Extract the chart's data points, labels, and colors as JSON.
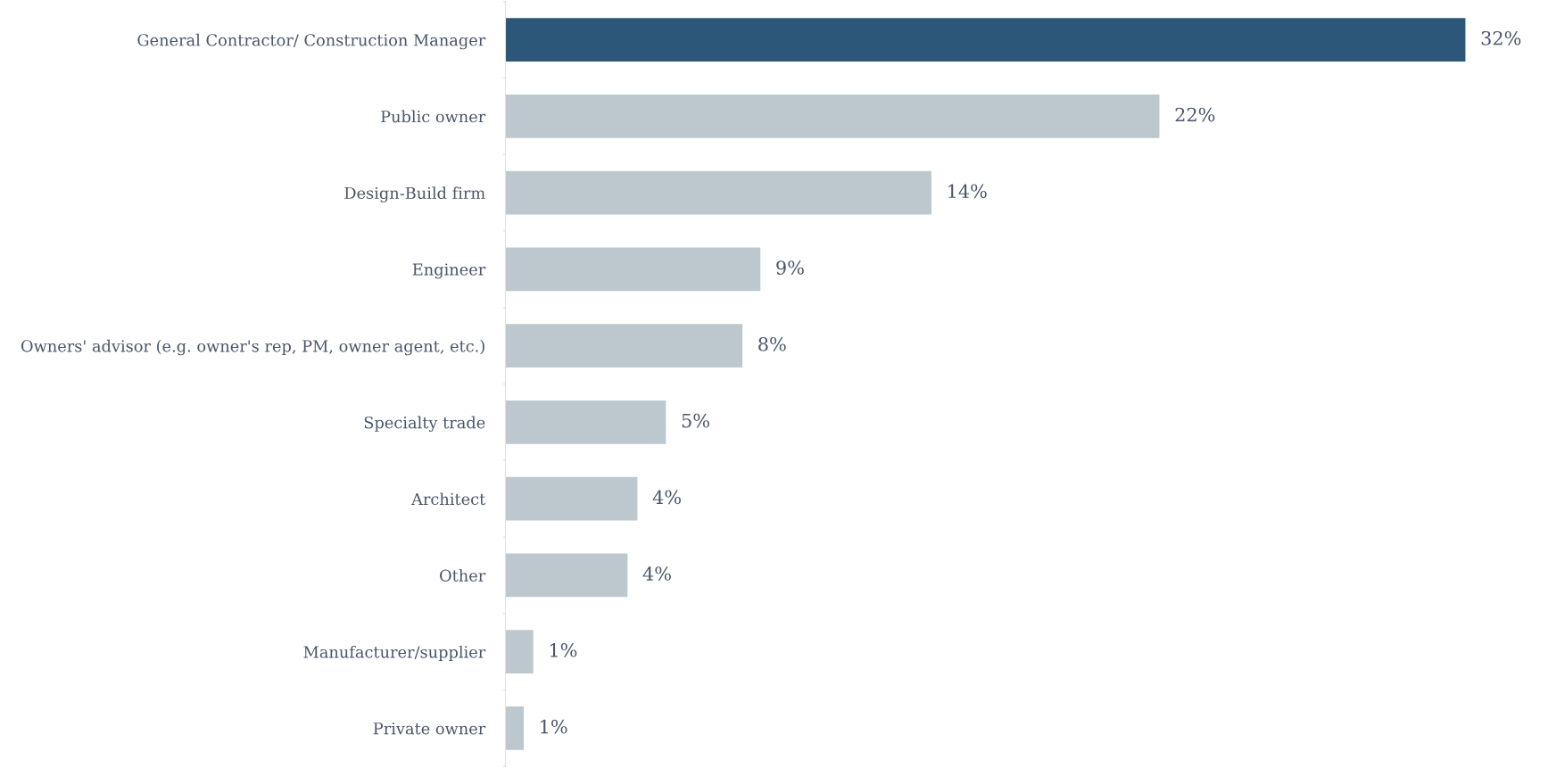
{
  "chart_data": {
    "type": "bar",
    "orientation": "horizontal",
    "categories": [
      "General Contractor/ Construction Manager",
      "Public owner",
      "Design-Build firm",
      "Engineer",
      "Owners' advisor (e.g. owner's rep, PM, owner agent, etc.)",
      "Specialty trade",
      "Architect",
      "Other",
      "Manufacturer/supplier",
      "Private owner"
    ],
    "values": [
      32,
      21.8,
      14.2,
      8.5,
      7.9,
      5.35,
      4.4,
      4.07,
      0.93,
      0.61
    ],
    "value_labels": [
      "32%",
      "22%",
      "14%",
      "9%",
      "8%",
      "5%",
      "4%",
      "4%",
      "1%",
      "1%"
    ],
    "colors": [
      "#2c5779",
      "#bdc8ce",
      "#bdc8ce",
      "#bdc8ce",
      "#bdc8ce",
      "#bdc8ce",
      "#bdc8ce",
      "#bdc8ce",
      "#bdc8ce",
      "#bdc8ce"
    ],
    "tick_labels": "y",
    "grid": false,
    "legend": false
  }
}
